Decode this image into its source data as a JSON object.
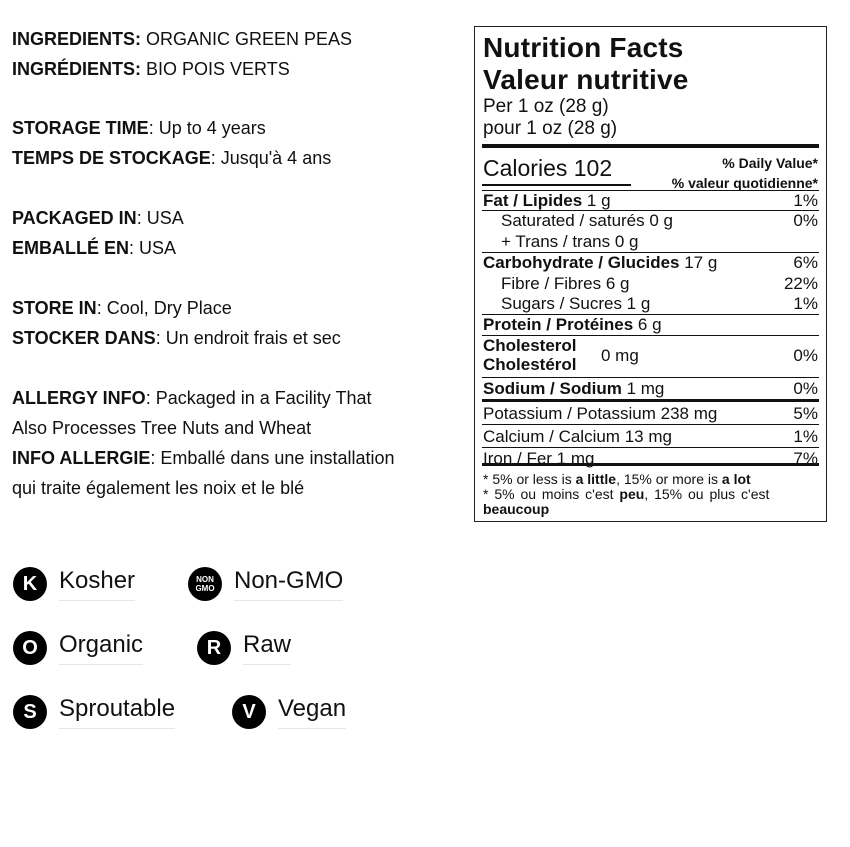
{
  "info": [
    {
      "label": "INGREDIENTS:",
      "value": " ORGANIC GREEN PEAS"
    },
    {
      "label": "INGRÉDIENTS:",
      "value": " BIO POIS VERTS"
    },
    {
      "label": "STORAGE TIME",
      "value": ": Up to 4 years"
    },
    {
      "label": "TEMPS DE STOCKAGE",
      "value": ": Jusqu'à 4 ans"
    },
    {
      "label": "PACKAGED IN",
      "value": ": USA"
    },
    {
      "label": "EMBALLÉ EN",
      "value": ": USA"
    },
    {
      "label": "STORE IN",
      "value": ": Cool, Dry Place"
    },
    {
      "label": "STOCKER DANS",
      "value": ": Un endroit frais et sec"
    },
    {
      "label": "ALLERGY INFO",
      "value": ": Packaged in a Facility That"
    },
    {
      "label": "",
      "value": "Also Processes Tree Nuts and Wheat"
    },
    {
      "label": "INFO ALLERGIE",
      "value": ": Emballé dans une installation"
    },
    {
      "label": "",
      "value": "qui traite également les noix et le blé"
    }
  ],
  "nutrition": {
    "title_en": "Nutrition Facts",
    "title_fr": "Valeur nutritive",
    "serving_en": "Per 1 oz (28 g)",
    "serving_fr": "pour 1 oz (28 g)",
    "calories_label": "Calories",
    "calories": "102",
    "dv_en": "% Daily Value*",
    "dv_fr": "% valeur quotidienne*",
    "rows": [
      {
        "bold": "Fat / Lipides",
        "amount": " 1 g",
        "dv": "1%"
      },
      {
        "bold": "",
        "amount": "Saturated / saturés 0 g",
        "dv": "0%"
      },
      {
        "bold": "",
        "amount": "+ Trans / trans 0 g",
        "dv": ""
      },
      {
        "bold": "Carbohydrate / Glucides",
        "amount": " 17 g",
        "dv": "6%"
      },
      {
        "bold": "",
        "amount": "Fibre / Fibres 6 g",
        "dv": "22%"
      },
      {
        "bold": "",
        "amount": "Sugars / Sucres 1 g",
        "dv": "1%"
      },
      {
        "bold": "Protein / Protéines",
        "amount": " 6 g",
        "dv": ""
      },
      {
        "bold": "Cholesterol",
        "bold2": "Cholestérol",
        "amount": "0 mg",
        "dv": "0%"
      },
      {
        "bold": "Sodium / Sodium",
        "amount": " 1 mg",
        "dv": "0%"
      },
      {
        "bold": "",
        "amount": "Potassium / Potassium 238 mg",
        "dv": "5%"
      },
      {
        "bold": "",
        "amount": "Calcium / Calcium 13 mg",
        "dv": "1%"
      },
      {
        "bold": "",
        "amount": "Iron / Fer 1 mg",
        "dv": "7%"
      }
    ],
    "foot1": [
      "* 5% or less is ",
      "a little",
      ", 15% or more is ",
      "a lot"
    ],
    "foot2": [
      "* 5% ou moins c'est ",
      "peu",
      ", 15% ou plus c'est"
    ],
    "foot3": "beaucoup"
  },
  "badges": [
    {
      "icon": "K",
      "label": "Kosher"
    },
    {
      "icon_top": "NON",
      "icon_bottom": "GMO",
      "label": "Non-GMO"
    },
    {
      "icon": "O",
      "label": "Organic"
    },
    {
      "icon": "R",
      "label": "Raw"
    },
    {
      "icon": "S",
      "label": "Sproutable"
    },
    {
      "icon": "V",
      "label": "Vegan"
    }
  ]
}
